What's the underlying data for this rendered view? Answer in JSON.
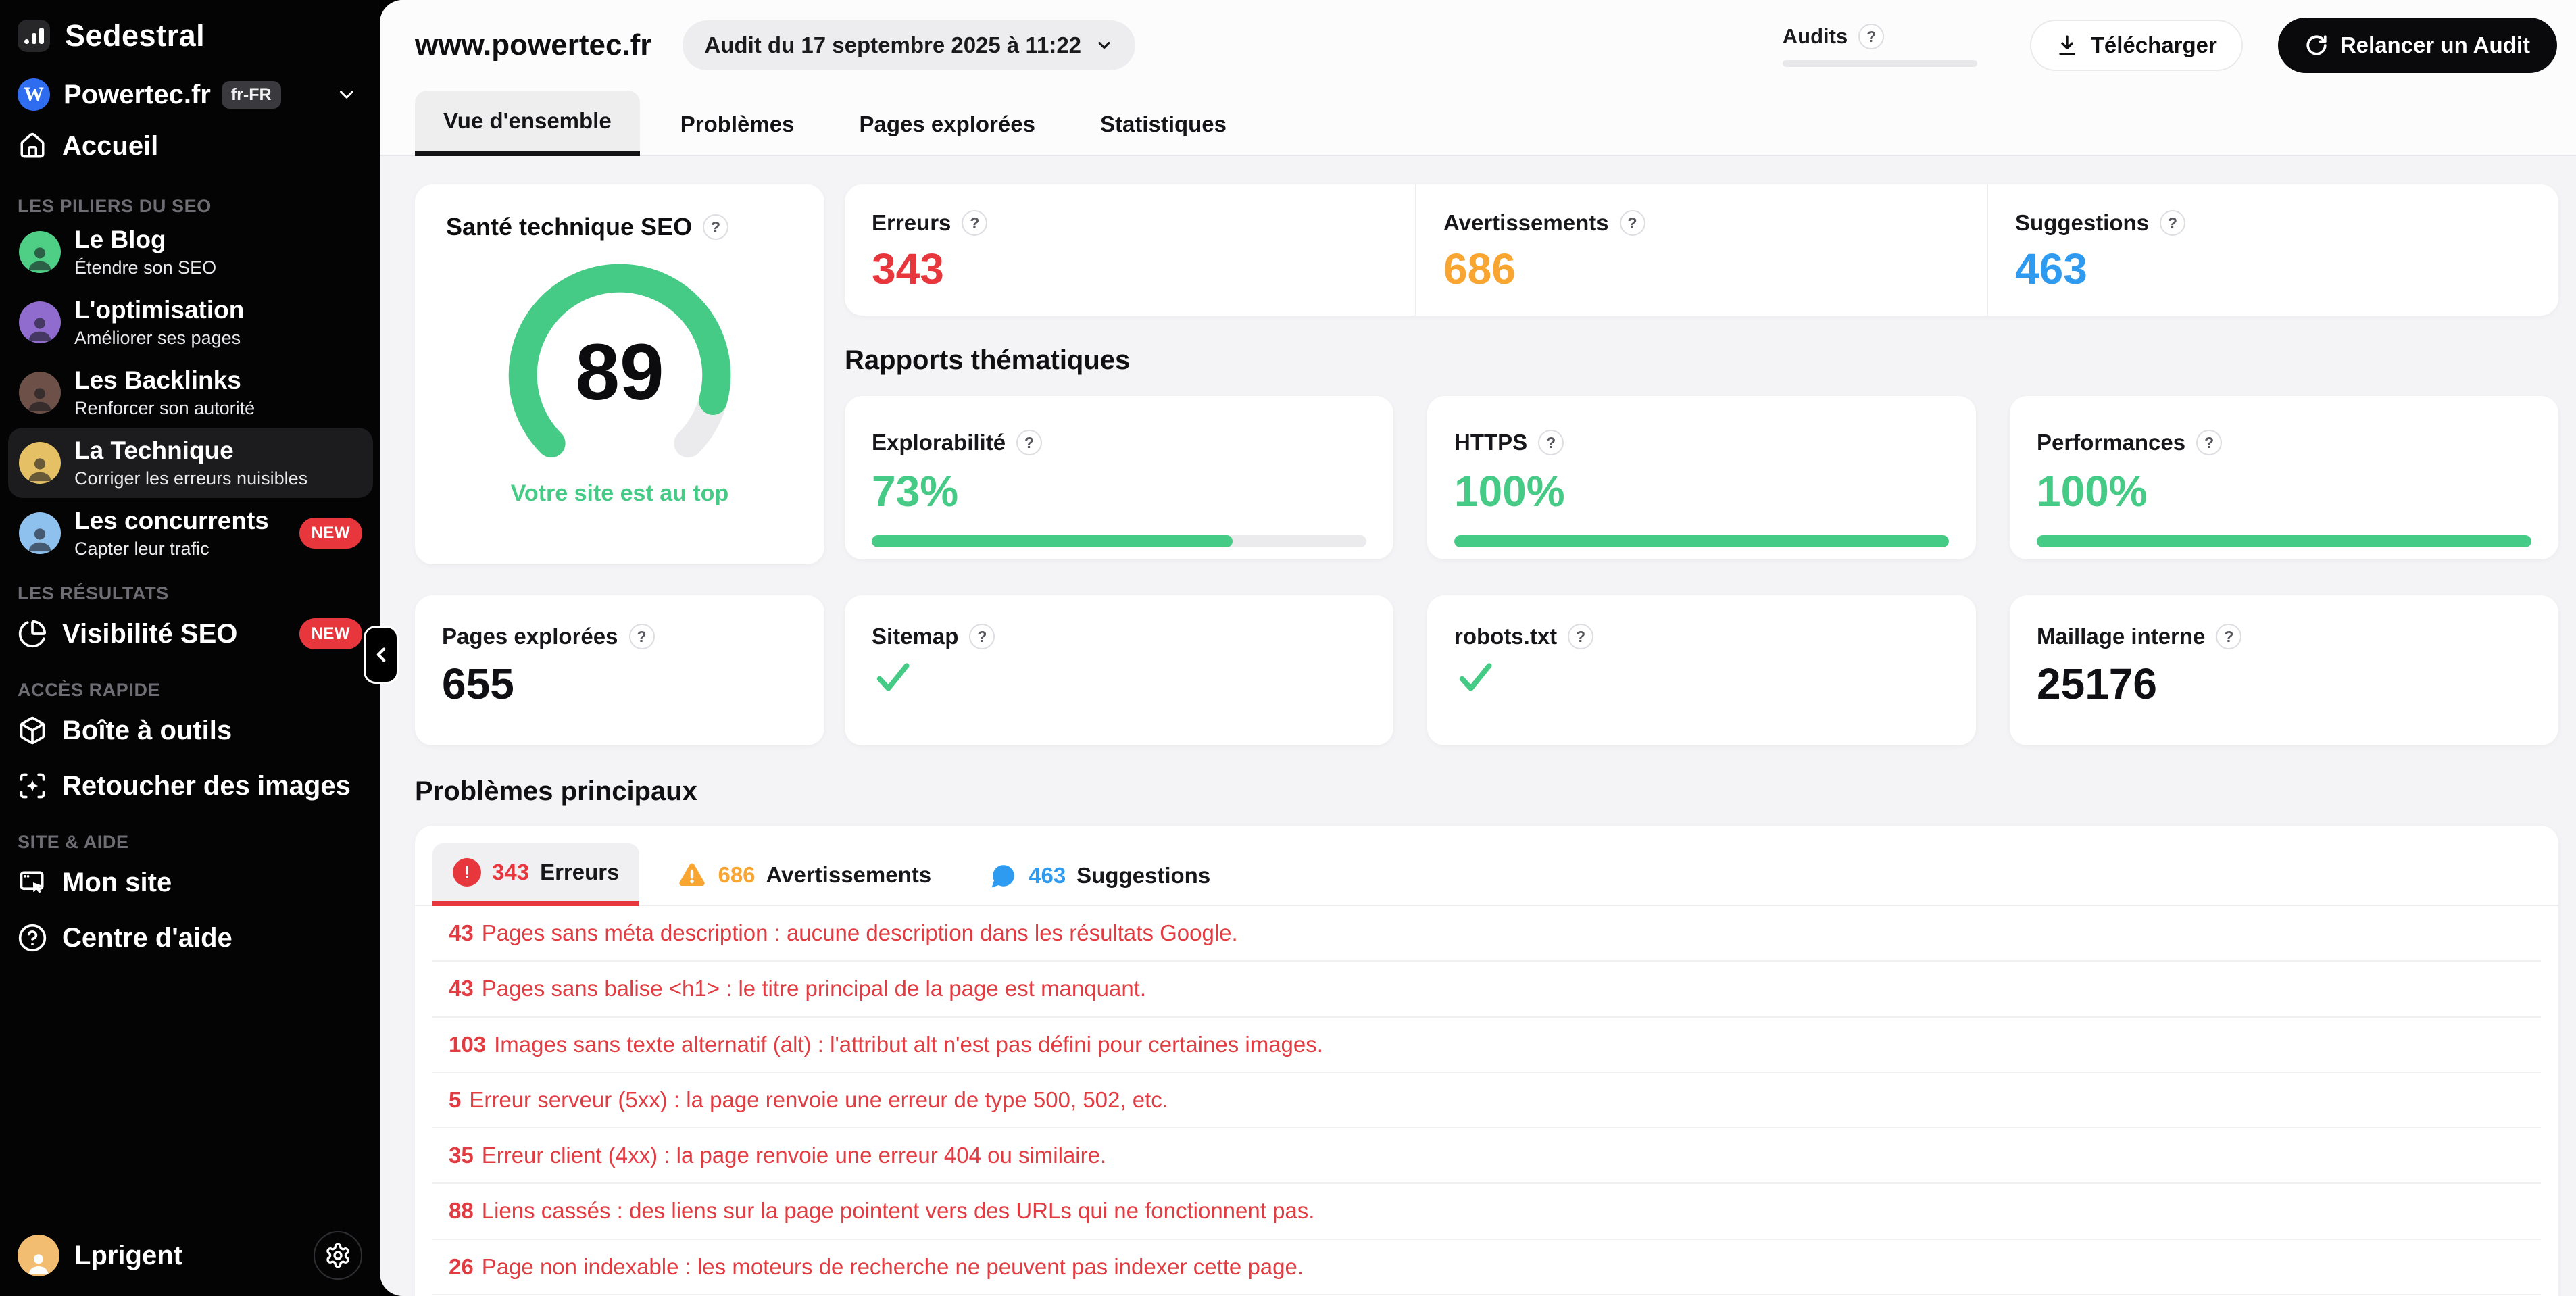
{
  "colors": {
    "green": "#45cb85",
    "red": "#e8363d",
    "orange": "#f8a531",
    "blue": "#2e9bf0"
  },
  "icons": {
    "question": "?",
    "exclamation": "!",
    "check": "✓"
  },
  "app": {
    "name": "Sedestral"
  },
  "sidebar": {
    "site": {
      "name": "Powertec.fr",
      "locale": "fr-FR"
    },
    "home_label": "Accueil",
    "sections": [
      {
        "title": "LES PILIERS DU SEO",
        "items": [
          {
            "label": "Le Blog",
            "subtitle": "Étendre son SEO"
          },
          {
            "label": "L'optimisation",
            "subtitle": "Améliorer ses pages"
          },
          {
            "label": "Les Backlinks",
            "subtitle": "Renforcer son autorité"
          },
          {
            "label": "La Technique",
            "subtitle": "Corriger les erreurs nuisibles"
          },
          {
            "label": "Les concurrents",
            "subtitle": "Capter leur trafic",
            "badge": "NEW"
          }
        ]
      },
      {
        "title": "LES RÉSULTATS",
        "items": [
          {
            "label": "Visibilité SEO",
            "badge": "NEW"
          }
        ]
      },
      {
        "title": "ACCÈS RAPIDE",
        "items": [
          {
            "label": "Boîte à outils"
          },
          {
            "label": "Retoucher des images"
          }
        ]
      },
      {
        "title": "SITE & AIDE",
        "items": [
          {
            "label": "Mon site"
          },
          {
            "label": "Centre d'aide"
          }
        ]
      }
    ],
    "user": {
      "name": "Lprigent"
    }
  },
  "header": {
    "title": "www.powertec.fr",
    "audit_selector": "Audit du 17 septembre 2025 à 11:22",
    "audits_label": "Audits",
    "download_label": "Télécharger",
    "relaunch_label": "Relancer un Audit",
    "tabs": [
      {
        "label": "Vue d'ensemble"
      },
      {
        "label": "Problèmes"
      },
      {
        "label": "Pages explorées"
      },
      {
        "label": "Statistiques"
      }
    ]
  },
  "overview": {
    "health": {
      "title": "Santé technique SEO",
      "score": 89,
      "caption": "Votre site est au top"
    },
    "totals": [
      {
        "label": "Erreurs",
        "value": "343"
      },
      {
        "label": "Avertissements",
        "value": "686"
      },
      {
        "label": "Suggestions",
        "value": "463"
      }
    ],
    "thematic": {
      "title": "Rapports thématiques",
      "cards": [
        {
          "label": "Explorabilité",
          "value": "73%",
          "pct": 73
        },
        {
          "label": "HTTPS",
          "value": "100%",
          "pct": 100
        },
        {
          "label": "Performances",
          "value": "100%",
          "pct": 100
        }
      ]
    },
    "crawl": [
      {
        "label": "Pages explorées",
        "value": "655"
      },
      {
        "label": "Sitemap",
        "check": true
      },
      {
        "label": "robots.txt",
        "check": true
      },
      {
        "label": "Maillage interne",
        "value": "25176"
      }
    ]
  },
  "problems": {
    "title": "Problèmes principaux",
    "tabs": [
      {
        "count": "343",
        "label": "Erreurs"
      },
      {
        "count": "686",
        "label": "Avertissements"
      },
      {
        "count": "463",
        "label": "Suggestions"
      }
    ],
    "items": [
      {
        "count": "43",
        "text": "Pages sans méta description : aucune description dans les résultats Google."
      },
      {
        "count": "43",
        "text": "Pages sans balise <h1> : le titre principal de la page est manquant."
      },
      {
        "count": "103",
        "text": "Images sans texte alternatif (alt) : l'attribut alt n'est pas défini pour certaines images."
      },
      {
        "count": "5",
        "text": "Erreur serveur (5xx) : la page renvoie une erreur de type 500, 502, etc."
      },
      {
        "count": "35",
        "text": "Erreur client (4xx) : la page renvoie une erreur 404 ou similaire."
      },
      {
        "count": "88",
        "text": "Liens cassés : des liens sur la page pointent vers des URLs qui ne fonctionnent pas."
      },
      {
        "count": "26",
        "text": "Page non indexable : les moteurs de recherche ne peuvent pas indexer cette page."
      }
    ]
  }
}
